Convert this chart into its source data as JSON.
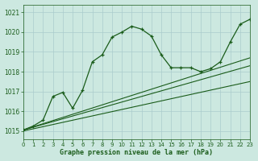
{
  "title": "Graphe pression niveau de la mer (hPa)",
  "background_color": "#cce8e0",
  "grid_color": "#aacccc",
  "line_color": "#1a5c1a",
  "xlim": [
    0,
    23
  ],
  "ylim": [
    1014.6,
    1021.4
  ],
  "yticks": [
    1015,
    1016,
    1017,
    1018,
    1019,
    1020,
    1021
  ],
  "xticks": [
    0,
    1,
    2,
    3,
    4,
    5,
    6,
    7,
    8,
    9,
    10,
    11,
    12,
    13,
    14,
    15,
    16,
    17,
    18,
    19,
    20,
    21,
    22,
    23
  ],
  "series": [
    {
      "x": [
        0,
        1,
        2,
        3,
        4,
        5,
        6,
        7,
        8,
        9,
        10,
        11,
        12,
        13,
        14,
        15,
        16,
        17,
        18,
        19,
        20,
        21,
        22,
        23
      ],
      "y": [
        1015.05,
        1015.25,
        1015.55,
        1016.75,
        1016.95,
        1016.15,
        1017.05,
        1018.5,
        1018.85,
        1019.75,
        1020.0,
        1020.3,
        1020.15,
        1019.8,
        1018.85,
        1018.2,
        1018.2,
        1018.2,
        1018.0,
        1018.15,
        1018.5,
        1019.5,
        1020.4,
        1020.65
      ],
      "marker": "+",
      "lw": 0.9,
      "linestyle": "-"
    },
    {
      "x": [
        0,
        23
      ],
      "y": [
        1015.05,
        1018.7
      ],
      "marker": null,
      "lw": 0.8,
      "linestyle": "-"
    },
    {
      "x": [
        0,
        23
      ],
      "y": [
        1015.05,
        1018.3
      ],
      "marker": null,
      "lw": 0.8,
      "linestyle": "-"
    },
    {
      "x": [
        0,
        23
      ],
      "y": [
        1015.0,
        1017.5
      ],
      "marker": null,
      "lw": 0.8,
      "linestyle": "-"
    }
  ]
}
